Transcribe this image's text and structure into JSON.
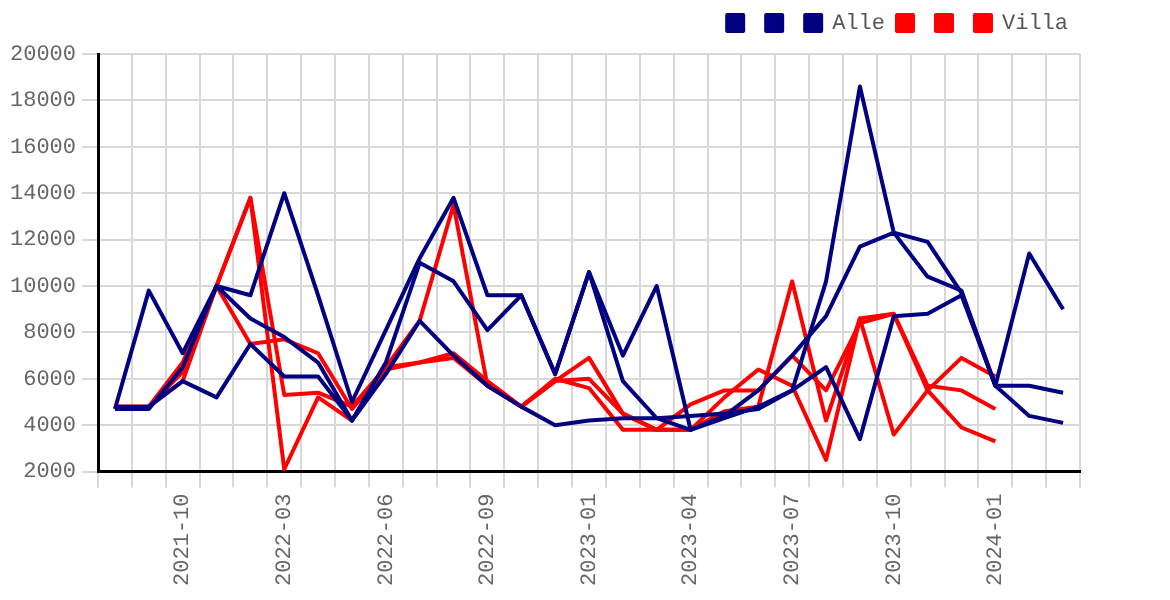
{
  "chart_data": {
    "type": "line",
    "categories": [
      null,
      null,
      "2021-10",
      null,
      null,
      "2022-03",
      null,
      null,
      "2022-06",
      null,
      null,
      "2022-09",
      null,
      null,
      "2023-01",
      null,
      null,
      "2023-04",
      null,
      null,
      "2023-07",
      null,
      null,
      "2023-10",
      null,
      null,
      "2024-01",
      null,
      null
    ],
    "series": [
      {
        "color": "#000080",
        "values": [
          4700,
          9800,
          7100,
          10000,
          9600,
          14000,
          9600,
          5000,
          8100,
          11200,
          13800,
          9600,
          9600,
          6200,
          10600,
          7000,
          10000,
          3800,
          4300,
          4800,
          5500,
          10200,
          18600,
          12300,
          11900,
          9700,
          5700,
          11400,
          9000
        ]
      },
      {
        "color": "#000080",
        "values": [
          4700,
          4700,
          6500,
          10000,
          8600,
          7800,
          6700,
          4200,
          6700,
          11000,
          10200,
          8100,
          9600,
          6200,
          10600,
          5900,
          4300,
          3800,
          4400,
          5500,
          7000,
          8700,
          11700,
          12300,
          10400,
          9800,
          5700,
          4400,
          4100
        ]
      },
      {
        "name": "Alle",
        "color": "#000080",
        "values": [
          4800,
          4800,
          5900,
          5200,
          7500,
          6100,
          6100,
          4200,
          6200,
          8500,
          7000,
          5700,
          4800,
          4000,
          4200,
          4300,
          4300,
          4400,
          4500,
          4700,
          5500,
          6500,
          3400,
          8700,
          8800,
          9600,
          5700,
          5700,
          5400
        ]
      },
      {
        "color": "#ff0000",
        "values": [
          4700,
          4800,
          6700,
          10000,
          13800,
          5300,
          5400,
          4800,
          6500,
          6700,
          6900,
          5700,
          4800,
          5900,
          6900,
          4500,
          3800,
          3800,
          4600,
          4800,
          10200,
          4200,
          8600,
          8800,
          5700,
          5500,
          4700,
          null,
          null
        ]
      },
      {
        "color": "#ff0000",
        "values": [
          4800,
          4800,
          6300,
          10000,
          13800,
          2100,
          5200,
          4200,
          6500,
          8500,
          13500,
          5700,
          4800,
          6000,
          5600,
          3800,
          3800,
          3800,
          5200,
          6400,
          5700,
          2500,
          8600,
          3600,
          5500,
          3900,
          3300,
          null,
          null
        ]
      },
      {
        "name": "Villa",
        "color": "#ff0000",
        "values": [
          4800,
          4800,
          5900,
          10000,
          7500,
          7700,
          7100,
          4700,
          6400,
          6700,
          7100,
          5900,
          4800,
          5900,
          6000,
          4500,
          3800,
          4900,
          5500,
          5500,
          7000,
          5500,
          8400,
          8800,
          5500,
          6900,
          6100,
          null,
          null
        ]
      }
    ],
    "ylim": [
      2000,
      20000
    ],
    "yticks": [
      2000,
      4000,
      6000,
      8000,
      10000,
      12000,
      14000,
      16000,
      18000,
      20000
    ],
    "grid": true,
    "legend": "top right",
    "marker": "none",
    "line_style": "solid"
  }
}
